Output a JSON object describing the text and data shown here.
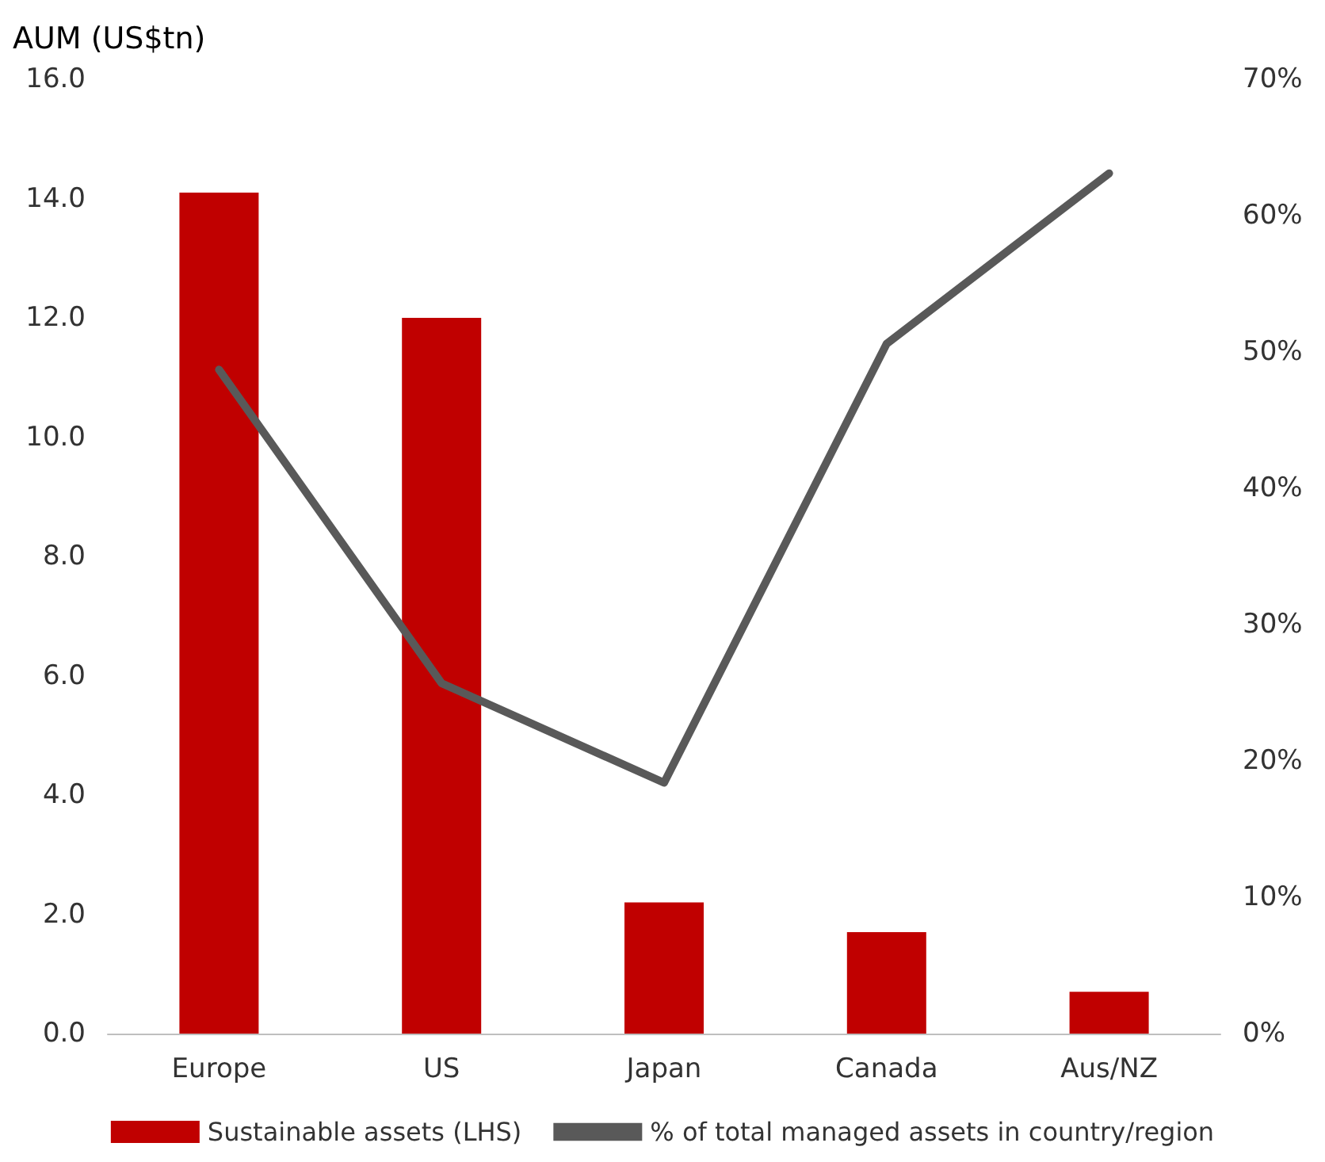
{
  "chart_data": {
    "type": "bar",
    "ylabel": "AUM (US$tn)",
    "categories": [
      "Europe",
      "US",
      "Japan",
      "Canada",
      "Aus/NZ"
    ],
    "series": [
      {
        "name": "Sustainable assets (LHS)",
        "color": "#c00000",
        "values": [
          14.1,
          12.0,
          2.2,
          1.7,
          0.7
        ]
      },
      {
        "name": "% of total managed assets in country/region",
        "type": "line",
        "axis": "y2",
        "color": "#595959",
        "values": [
          48.7,
          25.7,
          18.4,
          50.6,
          63.1
        ]
      }
    ],
    "ylim": [
      0,
      16
    ],
    "yticks": [
      {
        "value": 0,
        "label": "0.0"
      },
      {
        "value": 2,
        "label": "2.0"
      },
      {
        "value": 4,
        "label": "4.0"
      },
      {
        "value": 6,
        "label": "6.0"
      },
      {
        "value": 8,
        "label": "8.0"
      },
      {
        "value": 10,
        "label": "10.0"
      },
      {
        "value": 12,
        "label": "12.0"
      },
      {
        "value": 14,
        "label": "14.0"
      },
      {
        "value": 16,
        "label": "16.0"
      }
    ],
    "y2lim": [
      0,
      70
    ],
    "y2ticks": [
      {
        "value": 0,
        "label": "0%"
      },
      {
        "value": 10,
        "label": "10%"
      },
      {
        "value": 20,
        "label": "20%"
      },
      {
        "value": 30,
        "label": "30%"
      },
      {
        "value": 40,
        "label": "40%"
      },
      {
        "value": 50,
        "label": "50%"
      },
      {
        "value": 60,
        "label": "60%"
      },
      {
        "value": 70,
        "label": "70%"
      }
    ],
    "grid": false,
    "legend": "bottom",
    "marker": "none",
    "line_style": "solid"
  }
}
